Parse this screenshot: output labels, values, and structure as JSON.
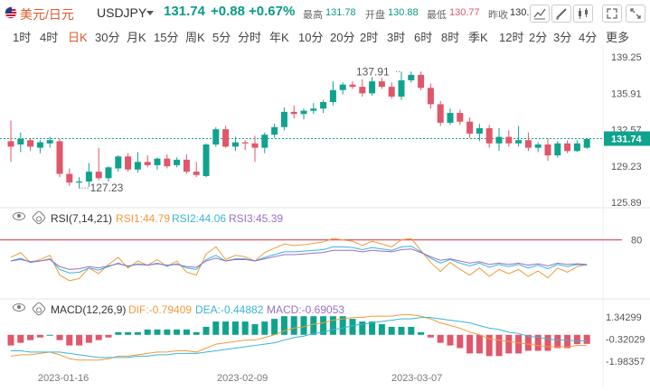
{
  "header": {
    "pair_name": "美元/日元",
    "pair_code": "USDJPY",
    "price": "131.74",
    "change": "+0.88",
    "change_pct": "+0.67%",
    "high_label": "最高",
    "high": "131.78",
    "open_label": "开盘",
    "open": "130.88",
    "low_label": "最低",
    "low": "130.77",
    "prev_label": "昨收",
    "prev": "130."
  },
  "timeframes": [
    "1时",
    "4时",
    "日K",
    "30分",
    "月K",
    "15分",
    "周K",
    "5分",
    "分时",
    "年K",
    "10分",
    "20分",
    "2时",
    "3时",
    "6时",
    "8时",
    "季K",
    "12时",
    "2分",
    "3分",
    "4分",
    "更多"
  ],
  "active_timeframe": "日K",
  "colors": {
    "up": "#0fa38e",
    "down": "#e0566a",
    "rsi1": "#f29a3c",
    "rsi2": "#38b6d6",
    "rsi3": "#9a6fc4",
    "dif": "#f29a3c",
    "dea": "#38b6d6",
    "rsi_line": "#e0566a",
    "accent": "#e0572a"
  },
  "rsi": {
    "label": "RSI(7,14,21)",
    "rsi1": "RSI1:44.79",
    "rsi2": "RSI2:44.06",
    "rsi3": "RSI3:45.39",
    "level": "80"
  },
  "macd": {
    "label": "MACD(12,26,9)",
    "dif": "DIF:-0.79409",
    "dea": "DEA:-0.44882",
    "macd": "MACD:-0.69053",
    "axis_labels": [
      "1.34299",
      "-0.32029",
      "-1.98357"
    ]
  },
  "chart_data": {
    "type": "candlestick",
    "price_axis": [
      "139.25",
      "135.91",
      "132.57",
      "129.23",
      "125.89"
    ],
    "ylim": [
      125.89,
      139.25
    ],
    "current_price": 131.74,
    "current_price_label": "131.74",
    "high_annotation": "137.91",
    "low_annotation": "127.23",
    "date_labels": [
      "2023-01-16",
      "2023-02-09",
      "2023-03-07"
    ],
    "candles": [
      {
        "o": 131.5,
        "h": 133.4,
        "l": 129.6,
        "c": 131.0
      },
      {
        "o": 131.2,
        "h": 132.3,
        "l": 130.5,
        "c": 131.7
      },
      {
        "o": 131.6,
        "h": 131.8,
        "l": 130.6,
        "c": 131.0
      },
      {
        "o": 130.9,
        "h": 131.6,
        "l": 130.4,
        "c": 131.4
      },
      {
        "o": 131.3,
        "h": 131.9,
        "l": 130.9,
        "c": 131.6
      },
      {
        "o": 131.5,
        "h": 131.7,
        "l": 128.2,
        "c": 128.5
      },
      {
        "o": 128.5,
        "h": 129.0,
        "l": 127.4,
        "c": 127.7
      },
      {
        "o": 127.7,
        "h": 128.2,
        "l": 127.2,
        "c": 127.8
      },
      {
        "o": 127.8,
        "h": 129.5,
        "l": 127.3,
        "c": 128.7
      },
      {
        "o": 128.7,
        "h": 130.9,
        "l": 127.9,
        "c": 128.1
      },
      {
        "o": 128.1,
        "h": 129.2,
        "l": 127.8,
        "c": 129.1
      },
      {
        "o": 129.0,
        "h": 130.2,
        "l": 128.7,
        "c": 130.1
      },
      {
        "o": 130.1,
        "h": 130.4,
        "l": 128.7,
        "c": 128.9
      },
      {
        "o": 128.9,
        "h": 130.5,
        "l": 128.6,
        "c": 129.6
      },
      {
        "o": 129.6,
        "h": 130.2,
        "l": 129.1,
        "c": 129.3
      },
      {
        "o": 129.3,
        "h": 130.0,
        "l": 128.9,
        "c": 129.9
      },
      {
        "o": 129.9,
        "h": 130.3,
        "l": 129.0,
        "c": 129.2
      },
      {
        "o": 129.3,
        "h": 130.0,
        "l": 129.1,
        "c": 129.8
      },
      {
        "o": 129.8,
        "h": 130.3,
        "l": 128.5,
        "c": 128.7
      },
      {
        "o": 128.7,
        "h": 129.6,
        "l": 128.2,
        "c": 128.4
      },
      {
        "o": 128.3,
        "h": 131.3,
        "l": 128.2,
        "c": 131.2
      },
      {
        "o": 131.2,
        "h": 132.8,
        "l": 131.0,
        "c": 132.6
      },
      {
        "o": 132.6,
        "h": 132.9,
        "l": 130.9,
        "c": 131.0
      },
      {
        "o": 131.0,
        "h": 131.9,
        "l": 130.6,
        "c": 131.4
      },
      {
        "o": 131.4,
        "h": 131.6,
        "l": 130.7,
        "c": 131.3
      },
      {
        "o": 131.3,
        "h": 132.0,
        "l": 129.6,
        "c": 130.9
      },
      {
        "o": 130.9,
        "h": 132.3,
        "l": 130.4,
        "c": 132.1
      },
      {
        "o": 132.1,
        "h": 133.1,
        "l": 131.8,
        "c": 132.8
      },
      {
        "o": 132.8,
        "h": 134.6,
        "l": 132.5,
        "c": 134.2
      },
      {
        "o": 134.2,
        "h": 134.8,
        "l": 133.6,
        "c": 134.0
      },
      {
        "o": 134.0,
        "h": 134.5,
        "l": 133.5,
        "c": 134.3
      },
      {
        "o": 134.3,
        "h": 135.0,
        "l": 134.0,
        "c": 134.5
      },
      {
        "o": 134.5,
        "h": 135.3,
        "l": 134.1,
        "c": 135.1
      },
      {
        "o": 135.1,
        "h": 137.0,
        "l": 134.8,
        "c": 136.2
      },
      {
        "o": 136.2,
        "h": 136.9,
        "l": 135.8,
        "c": 136.7
      },
      {
        "o": 136.7,
        "h": 137.0,
        "l": 136.3,
        "c": 136.5
      },
      {
        "o": 136.5,
        "h": 137.2,
        "l": 135.6,
        "c": 135.9
      },
      {
        "o": 135.9,
        "h": 137.4,
        "l": 135.7,
        "c": 137.0
      },
      {
        "o": 137.0,
        "h": 137.3,
        "l": 136.3,
        "c": 136.5
      },
      {
        "o": 136.5,
        "h": 136.9,
        "l": 135.4,
        "c": 135.6
      },
      {
        "o": 135.6,
        "h": 137.9,
        "l": 135.3,
        "c": 137.1
      },
      {
        "o": 137.1,
        "h": 137.9,
        "l": 136.9,
        "c": 137.6
      },
      {
        "o": 137.6,
        "h": 137.9,
        "l": 136.2,
        "c": 136.4
      },
      {
        "o": 136.4,
        "h": 136.8,
        "l": 134.5,
        "c": 134.9
      },
      {
        "o": 134.9,
        "h": 135.2,
        "l": 132.9,
        "c": 133.2
      },
      {
        "o": 133.2,
        "h": 134.5,
        "l": 133.0,
        "c": 134.1
      },
      {
        "o": 134.1,
        "h": 134.4,
        "l": 133.0,
        "c": 133.3
      },
      {
        "o": 133.3,
        "h": 133.7,
        "l": 131.8,
        "c": 132.2
      },
      {
        "o": 132.2,
        "h": 133.1,
        "l": 131.5,
        "c": 132.7
      },
      {
        "o": 132.7,
        "h": 133.0,
        "l": 130.9,
        "c": 131.3
      },
      {
        "o": 131.3,
        "h": 132.7,
        "l": 130.6,
        "c": 131.9
      },
      {
        "o": 131.9,
        "h": 132.5,
        "l": 131.0,
        "c": 131.3
      },
      {
        "o": 131.3,
        "h": 132.9,
        "l": 131.0,
        "c": 131.6
      },
      {
        "o": 131.6,
        "h": 132.3,
        "l": 130.6,
        "c": 130.9
      },
      {
        "o": 130.9,
        "h": 131.4,
        "l": 130.5,
        "c": 131.2
      },
      {
        "o": 131.2,
        "h": 131.8,
        "l": 129.7,
        "c": 130.2
      },
      {
        "o": 130.2,
        "h": 131.5,
        "l": 130.0,
        "c": 131.3
      },
      {
        "o": 131.3,
        "h": 131.6,
        "l": 130.4,
        "c": 130.6
      },
      {
        "o": 130.6,
        "h": 131.6,
        "l": 130.5,
        "c": 131.3
      },
      {
        "o": 130.9,
        "h": 131.8,
        "l": 130.8,
        "c": 131.7
      }
    ],
    "rsi_series": {
      "rsi1": [
        55,
        62,
        48,
        52,
        58,
        30,
        22,
        25,
        40,
        32,
        45,
        55,
        40,
        50,
        44,
        52,
        42,
        50,
        34,
        30,
        60,
        70,
        52,
        58,
        56,
        50,
        62,
        68,
        74,
        72,
        73,
        75,
        77,
        82,
        80,
        78,
        72,
        78,
        74,
        70,
        80,
        82,
        65,
        48,
        35,
        48,
        38,
        30,
        40,
        28,
        38,
        32,
        38,
        28,
        36,
        26,
        40,
        34,
        42,
        45
      ],
      "rsi2": [
        50,
        54,
        48,
        50,
        53,
        38,
        33,
        34,
        40,
        37,
        42,
        47,
        42,
        46,
        44,
        47,
        43,
        46,
        40,
        38,
        52,
        58,
        50,
        53,
        53,
        50,
        55,
        59,
        63,
        63,
        64,
        65,
        66,
        70,
        70,
        69,
        66,
        69,
        67,
        65,
        70,
        71,
        63,
        54,
        47,
        52,
        47,
        43,
        47,
        41,
        45,
        42,
        45,
        40,
        44,
        39,
        45,
        42,
        45,
        44
      ],
      "rsi3": [
        50,
        52,
        49,
        50,
        52,
        42,
        38,
        39,
        42,
        40,
        43,
        46,
        43,
        45,
        44,
        46,
        44,
        45,
        42,
        41,
        50,
        54,
        50,
        52,
        52,
        50,
        53,
        56,
        59,
        59,
        60,
        61,
        62,
        65,
        65,
        65,
        63,
        65,
        64,
        63,
        66,
        67,
        62,
        56,
        51,
        53,
        50,
        47,
        49,
        45,
        47,
        45,
        47,
        44,
        46,
        43,
        47,
        45,
        46,
        45
      ]
    },
    "macd_series": {
      "dif": [
        -1.6,
        -1.5,
        -1.5,
        -1.4,
        -1.3,
        -1.5,
        -1.8,
        -1.9,
        -1.9,
        -1.9,
        -1.8,
        -1.6,
        -1.6,
        -1.5,
        -1.4,
        -1.3,
        -1.3,
        -1.2,
        -1.2,
        -1.3,
        -1.0,
        -0.7,
        -0.6,
        -0.5,
        -0.4,
        -0.4,
        -0.2,
        0.0,
        0.3,
        0.5,
        0.6,
        0.8,
        0.9,
        1.1,
        1.2,
        1.3,
        1.3,
        1.4,
        1.4,
        1.4,
        1.5,
        1.5,
        1.4,
        1.2,
        0.9,
        0.7,
        0.5,
        0.2,
        0.0,
        -0.3,
        -0.4,
        -0.5,
        -0.6,
        -0.7,
        -0.8,
        -0.9,
        -0.9,
        -0.9,
        -0.8,
        -0.79
      ],
      "dea": [
        -1.2,
        -1.2,
        -1.3,
        -1.3,
        -1.3,
        -1.3,
        -1.4,
        -1.5,
        -1.6,
        -1.7,
        -1.7,
        -1.7,
        -1.7,
        -1.6,
        -1.6,
        -1.5,
        -1.5,
        -1.4,
        -1.4,
        -1.4,
        -1.3,
        -1.2,
        -1.1,
        -1.0,
        -0.9,
        -0.8,
        -0.7,
        -0.6,
        -0.4,
        -0.2,
        -0.1,
        0.1,
        0.2,
        0.4,
        0.5,
        0.7,
        0.8,
        0.9,
        1.0,
        1.1,
        1.2,
        1.2,
        1.3,
        1.3,
        1.2,
        1.1,
        1.0,
        0.9,
        0.7,
        0.5,
        0.4,
        0.2,
        0.1,
        -0.1,
        -0.2,
        -0.3,
        -0.4,
        -0.4,
        -0.45,
        -0.45
      ]
    }
  }
}
